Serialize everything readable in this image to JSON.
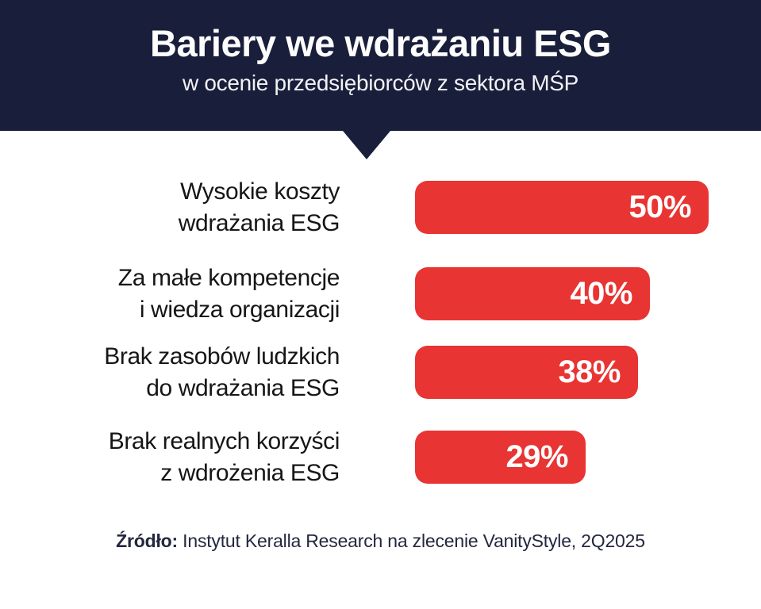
{
  "header": {
    "title": "Bariery we wdrażaniu ESG",
    "subtitle": "w ocenie przedsiębiorców z sektora MŚP"
  },
  "footer": {
    "source_label": "Źródło:",
    "source_text": " Instytut Keralla Research na zlecenie VanityStyle, 2Q2025"
  },
  "colors": {
    "header_navy": "#191e3a",
    "bar_red": "#e83432",
    "label_text": "#161618",
    "footer_text": "#23273f",
    "background": "#ffffff",
    "bar_value_text": "#ffffff"
  },
  "chart_data": {
    "type": "bar",
    "orientation": "horizontal",
    "title": "Bariery we wdrażaniu ESG",
    "subtitle": "w ocenie przedsiębiorców z sektora MŚP",
    "unit": "%",
    "xlim": [
      0,
      50
    ],
    "grid": false,
    "legend": false,
    "categories": [
      "Wysokie koszty wdrażania ESG",
      "Za małe kompetencje i wiedza organizacji",
      "Brak zasobów ludzkich do wdrażania ESG",
      "Brak realnych korzyści z wdrożenia ESG"
    ],
    "values": [
      50,
      40,
      38,
      29
    ],
    "value_labels": [
      "50%",
      "40%",
      "38%",
      "29%"
    ],
    "source": "Instytut Keralla Research na zlecenie VanityStyle, 2Q2025",
    "rows": [
      {
        "label_line1": "Wysokie koszty",
        "label_line2": "wdrażania ESG",
        "value": 50,
        "value_label": "50%"
      },
      {
        "label_line1": "Za małe kompetencje",
        "label_line2": "i wiedza organizacji",
        "value": 40,
        "value_label": "40%"
      },
      {
        "label_line1": "Brak zasobów ludzkich",
        "label_line2": "do wdrażania ESG",
        "value": 38,
        "value_label": "38%"
      },
      {
        "label_line1": "Brak realnych korzyści",
        "label_line2": "z wdrożenia ESG",
        "value": 29,
        "value_label": "29%"
      }
    ]
  }
}
